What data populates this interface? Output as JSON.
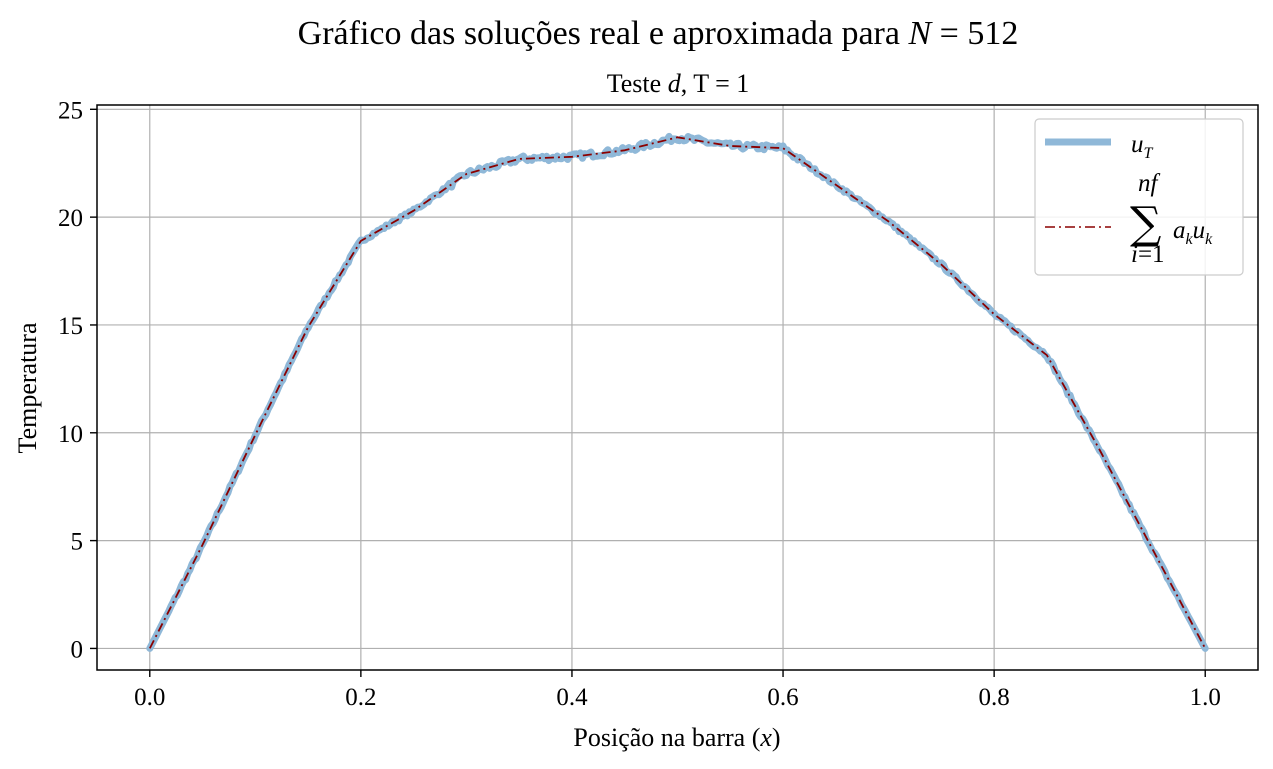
{
  "chart_data": {
    "type": "line",
    "suptitle": "Gráfico das soluções real e aproximada para N = 512",
    "title": "Teste d, T = 1",
    "xlabel": "Posição na barra (x)",
    "ylabel": "Temperatura",
    "xlim": [
      -0.05,
      1.05
    ],
    "ylim": [
      -1.0,
      25.2
    ],
    "xticks": [
      0.0,
      0.2,
      0.4,
      0.6,
      0.8,
      1.0
    ],
    "xtick_labels": [
      "0.0",
      "0.2",
      "0.4",
      "0.6",
      "0.8",
      "1.0"
    ],
    "yticks": [
      0,
      5,
      10,
      15,
      20,
      25
    ],
    "ytick_labels": [
      "0",
      "5",
      "10",
      "15",
      "20",
      "25"
    ],
    "grid": true,
    "legend_position": "top-right",
    "series": [
      {
        "name": "u_T",
        "style": "solid thick, noisy",
        "color": "#8fb8d8",
        "x": [
          0.0,
          0.05,
          0.1,
          0.15,
          0.2,
          0.25,
          0.3,
          0.35,
          0.4,
          0.45,
          0.5,
          0.55,
          0.6,
          0.65,
          0.7,
          0.75,
          0.8,
          0.85,
          0.9,
          0.95,
          1.0
        ],
        "y": [
          0.0,
          4.8,
          9.9,
          14.9,
          18.9,
          20.3,
          22.0,
          22.7,
          22.8,
          23.1,
          23.7,
          23.3,
          23.2,
          21.5,
          19.8,
          17.8,
          15.5,
          13.6,
          9.2,
          4.6,
          0.0
        ]
      },
      {
        "name": "Σ_{i=1}^{nf} a_k u_k",
        "style": "dash-dot thin",
        "color": "#8b0000",
        "x": [
          0.0,
          0.05,
          0.1,
          0.15,
          0.2,
          0.25,
          0.3,
          0.35,
          0.4,
          0.45,
          0.5,
          0.55,
          0.6,
          0.65,
          0.7,
          0.75,
          0.8,
          0.85,
          0.9,
          0.95,
          1.0
        ],
        "y": [
          0.0,
          4.8,
          9.9,
          14.9,
          18.9,
          20.3,
          22.0,
          22.7,
          22.8,
          23.1,
          23.7,
          23.3,
          23.2,
          21.5,
          19.8,
          17.8,
          15.5,
          13.6,
          9.2,
          4.6,
          0.0
        ]
      }
    ]
  }
}
